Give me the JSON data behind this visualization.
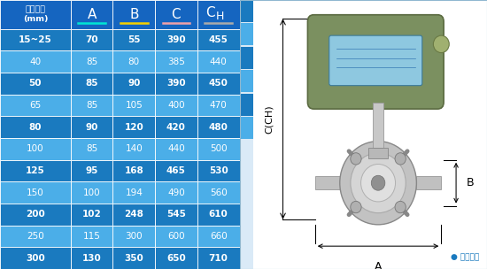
{
  "headers": [
    "仪表口径\n(mm)",
    "A",
    "B",
    "C",
    "CH"
  ],
  "rows": [
    [
      "15~25",
      "70",
      "55",
      "390",
      "455"
    ],
    [
      "40",
      "85",
      "80",
      "385",
      "440"
    ],
    [
      "50",
      "85",
      "90",
      "390",
      "450"
    ],
    [
      "65",
      "85",
      "105",
      "400",
      "470"
    ],
    [
      "80",
      "90",
      "120",
      "420",
      "480"
    ],
    [
      "100",
      "85",
      "140",
      "440",
      "500"
    ],
    [
      "125",
      "95",
      "168",
      "465",
      "530"
    ],
    [
      "150",
      "100",
      "194",
      "490",
      "560"
    ],
    [
      "200",
      "102",
      "248",
      "545",
      "610"
    ],
    [
      "250",
      "115",
      "300",
      "600",
      "660"
    ],
    [
      "300",
      "130",
      "350",
      "650",
      "710"
    ]
  ],
  "dark_row_indices": [
    0,
    2,
    4,
    6,
    8,
    10
  ],
  "light_row_indices": [
    1,
    3,
    5,
    7,
    9
  ],
  "dark_row_bg": "#1a7abf",
  "light_row_bg": "#4baee8",
  "header_bg": "#1565c0",
  "ul_colors": [
    "#00e5d4",
    "#f5d000",
    "#f0a0a8",
    "#aaaaaa"
  ],
  "bg_color": "#daeaf7",
  "note_text": "● 常规仪表",
  "sidebar_blue": "#1a7abf",
  "sidebar_light": "#4baee8"
}
